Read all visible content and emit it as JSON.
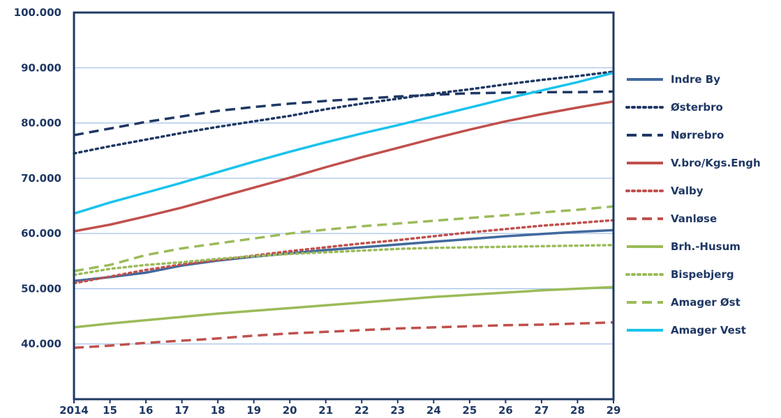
{
  "chart_data": {
    "type": "line",
    "x_labels": [
      "2014",
      "15",
      "16",
      "17",
      "18",
      "19",
      "20",
      "21",
      "22",
      "23",
      "24",
      "25",
      "26",
      "27",
      "28",
      "29"
    ],
    "y_ticks": [
      "40.000",
      "50.000",
      "60.000",
      "70.000",
      "80.000",
      "90.000",
      "100.000"
    ],
    "ylim": [
      30000,
      100000
    ],
    "grid": true,
    "legend_position": "right",
    "series": [
      {
        "name": "Indre By",
        "color": "#41699e",
        "dash": "solid",
        "values": [
          51400,
          52100,
          52900,
          54200,
          55100,
          55800,
          56400,
          57000,
          57500,
          58000,
          58500,
          59000,
          59500,
          59900,
          60300,
          60600
        ]
      },
      {
        "name": "Østerbro",
        "color": "#1f3864",
        "dash": "dotted",
        "values": [
          74500,
          75800,
          77000,
          78200,
          79300,
          80300,
          81300,
          82500,
          83500,
          84400,
          85300,
          86100,
          87000,
          87800,
          88500,
          89300
        ]
      },
      {
        "name": "Nørrebro",
        "color": "#1f3864",
        "dash": "dashed",
        "values": [
          77800,
          79000,
          80200,
          81200,
          82200,
          82900,
          83500,
          84000,
          84400,
          84800,
          85100,
          85400,
          85500,
          85600,
          85600,
          85700
        ]
      },
      {
        "name": "V.bro/Kgs.Engh",
        "color": "#c0504d",
        "dash": "solid",
        "values": [
          60400,
          61600,
          63100,
          64700,
          66500,
          68300,
          70100,
          72000,
          73800,
          75500,
          77200,
          78800,
          80300,
          81600,
          82800,
          83900
        ]
      },
      {
        "name": "Valby",
        "color": "#c0504d",
        "dash": "dotted",
        "values": [
          51000,
          52200,
          53400,
          54400,
          55200,
          56000,
          56800,
          57500,
          58200,
          58800,
          59500,
          60200,
          60800,
          61400,
          61900,
          62400
        ]
      },
      {
        "name": "Vanløse",
        "color": "#c0504d",
        "dash": "dashed",
        "values": [
          39300,
          39700,
          40200,
          40600,
          41000,
          41500,
          41900,
          42200,
          42500,
          42800,
          43000,
          43200,
          43400,
          43500,
          43700,
          43900
        ]
      },
      {
        "name": "Brh.-Husum",
        "color": "#9bbb59",
        "dash": "solid",
        "values": [
          43000,
          43700,
          44300,
          44900,
          45500,
          46000,
          46500,
          47000,
          47500,
          48000,
          48500,
          48900,
          49300,
          49700,
          50000,
          50300
        ]
      },
      {
        "name": "Bispebjerg",
        "color": "#9bbb59",
        "dash": "dotted",
        "values": [
          52500,
          53600,
          54300,
          54800,
          55400,
          55900,
          56300,
          56600,
          56900,
          57200,
          57400,
          57500,
          57600,
          57700,
          57800,
          57900
        ]
      },
      {
        "name": "Amager Øst",
        "color": "#9bbb59",
        "dash": "dashed",
        "values": [
          53200,
          54300,
          56100,
          57300,
          58200,
          59100,
          60000,
          60700,
          61300,
          61800,
          62300,
          62800,
          63300,
          63800,
          64300,
          64900
        ]
      },
      {
        "name": "Amager Vest",
        "color": "#19c3ed",
        "dash": "solid",
        "values": [
          63600,
          65600,
          67400,
          69200,
          71100,
          73000,
          74800,
          76500,
          78100,
          79600,
          81200,
          82800,
          84400,
          85900,
          87400,
          89100
        ]
      }
    ]
  }
}
